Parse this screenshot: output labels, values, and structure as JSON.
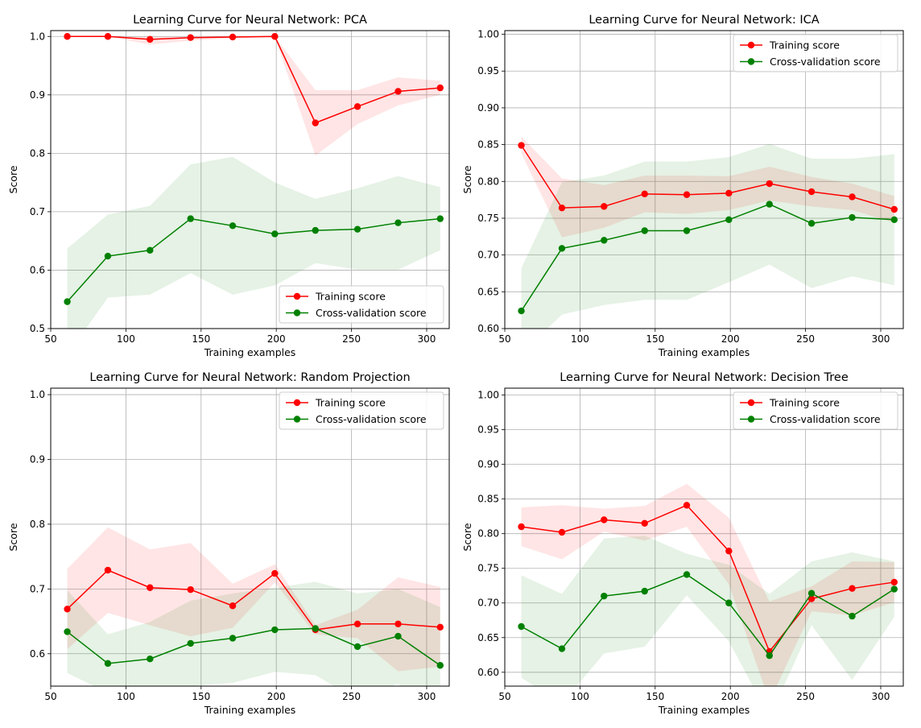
{
  "colors": {
    "train": "#ff0000",
    "cv": "#008000",
    "train_band": "#ff0000",
    "cv_band": "#008000",
    "grid": "#b0b0b0"
  },
  "chart_data": [
    {
      "type": "line",
      "title": "Learning Curve for Neural Network: PCA",
      "xlabel": "Training examples",
      "ylabel": "Score",
      "xlim": [
        50,
        315
      ],
      "ylim": [
        0.5,
        1.01
      ],
      "xticks": [
        50,
        100,
        150,
        200,
        250,
        300
      ],
      "yticks": [
        "0.5",
        "0.6",
        "0.7",
        "0.8",
        "0.9",
        "1.0"
      ],
      "grid": true,
      "legend_position": "lower-right",
      "x": [
        61,
        88,
        116,
        143,
        171,
        199,
        226,
        254,
        281,
        309
      ],
      "series": [
        {
          "name": "Training score",
          "values": [
            1.0,
            1.0,
            0.995,
            0.998,
            0.999,
            1.0,
            0.852,
            0.88,
            0.906,
            0.912
          ],
          "lower": [
            1.0,
            1.0,
            0.986,
            0.993,
            0.997,
            0.999,
            0.796,
            0.85,
            0.882,
            0.9
          ],
          "upper": [
            1.0,
            1.0,
            1.0,
            1.0,
            1.0,
            1.0,
            0.908,
            0.908,
            0.93,
            0.924
          ]
        },
        {
          "name": "Cross-validation score",
          "values": [
            0.546,
            0.624,
            0.634,
            0.688,
            0.676,
            0.662,
            0.668,
            0.67,
            0.681,
            0.688
          ],
          "lower": [
            0.455,
            0.553,
            0.558,
            0.595,
            0.558,
            0.574,
            0.612,
            0.601,
            0.601,
            0.634
          ],
          "upper": [
            0.637,
            0.695,
            0.71,
            0.781,
            0.794,
            0.75,
            0.722,
            0.74,
            0.761,
            0.742
          ]
        }
      ]
    },
    {
      "type": "line",
      "title": "Learning Curve for Neural Network: ICA",
      "xlabel": "Training examples",
      "ylabel": "Score",
      "xlim": [
        50,
        315
      ],
      "ylim": [
        0.6,
        1.005
      ],
      "xticks": [
        50,
        100,
        150,
        200,
        250,
        300
      ],
      "yticks": [
        "0.60",
        "0.65",
        "0.70",
        "0.75",
        "0.80",
        "0.85",
        "0.90",
        "0.95",
        "1.00"
      ],
      "grid": true,
      "legend_position": "upper-right",
      "x": [
        61,
        88,
        116,
        143,
        171,
        199,
        226,
        254,
        281,
        309
      ],
      "series": [
        {
          "name": "Training score",
          "values": [
            0.849,
            0.764,
            0.766,
            0.783,
            0.782,
            0.784,
            0.797,
            0.786,
            0.779,
            0.762
          ],
          "lower": [
            0.838,
            0.724,
            0.737,
            0.758,
            0.756,
            0.761,
            0.774,
            0.766,
            0.761,
            0.744
          ],
          "upper": [
            0.861,
            0.804,
            0.795,
            0.808,
            0.808,
            0.807,
            0.82,
            0.806,
            0.797,
            0.78
          ]
        },
        {
          "name": "Cross-validation score",
          "values": [
            0.624,
            0.709,
            0.72,
            0.733,
            0.733,
            0.748,
            0.769,
            0.743,
            0.751,
            0.748
          ],
          "lower": [
            0.566,
            0.619,
            0.632,
            0.639,
            0.639,
            0.663,
            0.687,
            0.655,
            0.671,
            0.659
          ],
          "upper": [
            0.682,
            0.799,
            0.808,
            0.827,
            0.827,
            0.833,
            0.851,
            0.831,
            0.831,
            0.837
          ]
        }
      ]
    },
    {
      "type": "line",
      "title": "Learning Curve for Neural Network: Random Projection",
      "xlabel": "Training examples",
      "ylabel": "Score",
      "xlim": [
        50,
        315
      ],
      "ylim": [
        0.55,
        1.01
      ],
      "xticks": [
        50,
        100,
        150,
        200,
        250,
        300
      ],
      "yticks": [
        "0.6",
        "0.7",
        "0.8",
        "0.9",
        "1.0"
      ],
      "grid": true,
      "legend_position": "upper-right",
      "x": [
        61,
        88,
        116,
        143,
        171,
        199,
        226,
        254,
        281,
        309
      ],
      "series": [
        {
          "name": "Training score",
          "values": [
            0.669,
            0.729,
            0.702,
            0.699,
            0.674,
            0.724,
            0.637,
            0.646,
            0.646,
            0.641
          ],
          "lower": [
            0.607,
            0.663,
            0.644,
            0.627,
            0.64,
            0.71,
            0.63,
            0.624,
            0.573,
            0.58
          ],
          "upper": [
            0.731,
            0.795,
            0.761,
            0.771,
            0.708,
            0.738,
            0.644,
            0.668,
            0.718,
            0.703
          ]
        },
        {
          "name": "Cross-validation score",
          "values": [
            0.634,
            0.585,
            0.592,
            0.616,
            0.624,
            0.637,
            0.639,
            0.611,
            0.627,
            0.582
          ],
          "lower": [
            0.57,
            0.54,
            0.535,
            0.55,
            0.555,
            0.572,
            0.567,
            0.529,
            0.554,
            0.492
          ],
          "upper": [
            0.698,
            0.63,
            0.649,
            0.682,
            0.693,
            0.702,
            0.711,
            0.693,
            0.7,
            0.672
          ]
        }
      ]
    },
    {
      "type": "line",
      "title": "Learning Curve for Neural Network: Decision Tree",
      "xlabel": "Training examples",
      "ylabel": "Score",
      "xlim": [
        50,
        315
      ],
      "ylim": [
        0.58,
        1.01
      ],
      "xticks": [
        50,
        100,
        150,
        200,
        250,
        300
      ],
      "yticks": [
        "0.60",
        "0.65",
        "0.70",
        "0.75",
        "0.80",
        "0.85",
        "0.90",
        "0.95",
        "1.00"
      ],
      "grid": true,
      "legend_position": "upper-right",
      "x": [
        61,
        88,
        116,
        143,
        171,
        199,
        226,
        254,
        281,
        309
      ],
      "series": [
        {
          "name": "Training score",
          "values": [
            0.81,
            0.802,
            0.82,
            0.815,
            0.841,
            0.775,
            0.63,
            0.706,
            0.721,
            0.73
          ],
          "lower": [
            0.782,
            0.763,
            0.803,
            0.79,
            0.81,
            0.727,
            0.558,
            0.688,
            0.682,
            0.701
          ],
          "upper": [
            0.838,
            0.841,
            0.836,
            0.84,
            0.872,
            0.823,
            0.702,
            0.724,
            0.76,
            0.759
          ]
        },
        {
          "name": "Cross-validation score",
          "values": [
            0.666,
            0.634,
            0.71,
            0.717,
            0.741,
            0.7,
            0.624,
            0.714,
            0.681,
            0.72
          ],
          "lower": [
            0.592,
            0.555,
            0.627,
            0.637,
            0.711,
            0.645,
            0.535,
            0.668,
            0.589,
            0.68
          ],
          "upper": [
            0.74,
            0.713,
            0.793,
            0.797,
            0.771,
            0.755,
            0.713,
            0.76,
            0.773,
            0.76
          ]
        }
      ]
    }
  ]
}
